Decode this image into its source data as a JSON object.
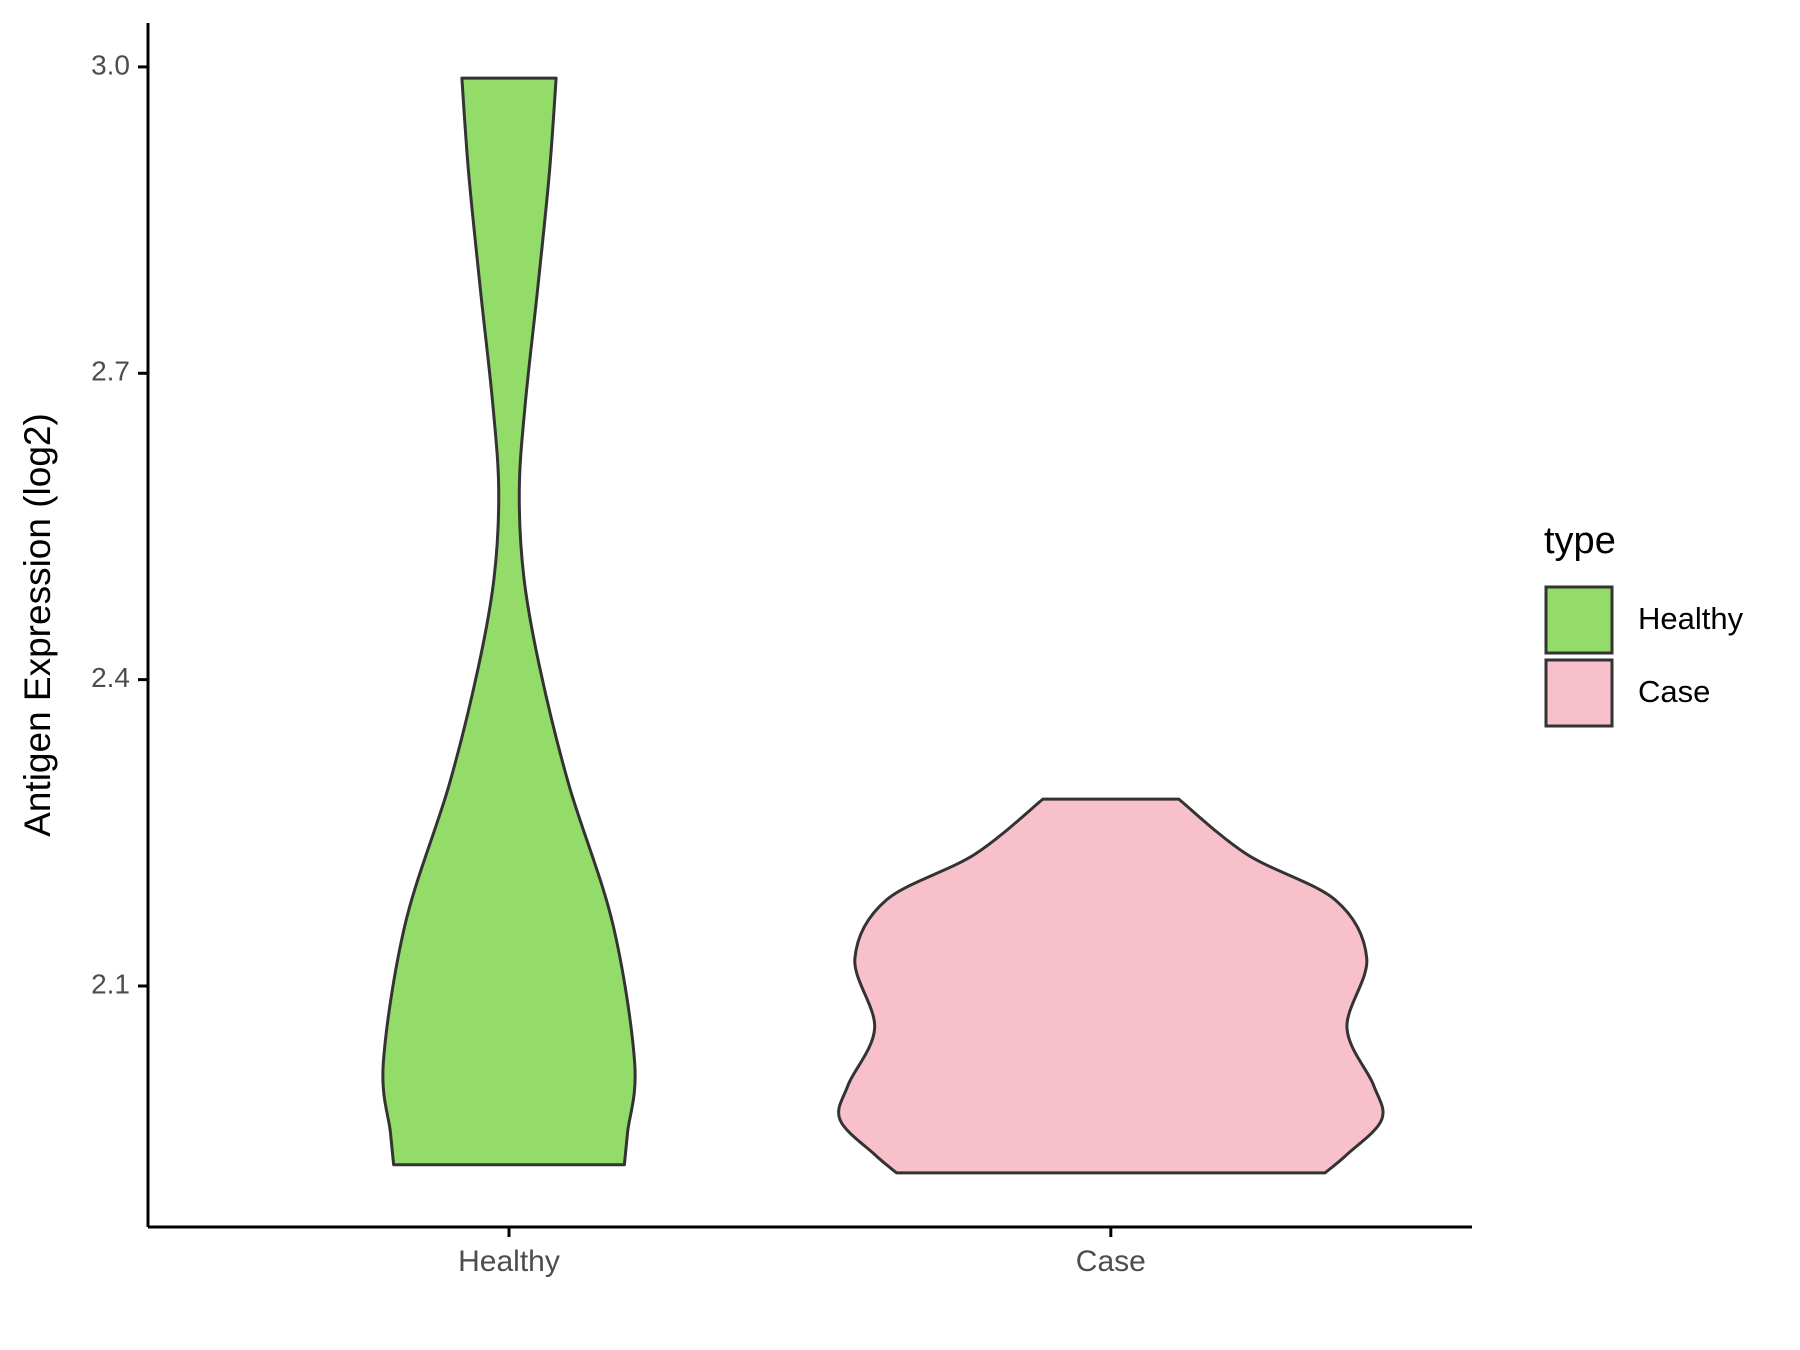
{
  "chart_data": {
    "type": "violin",
    "y_label": "Antigen Expression (log2)",
    "categories": [
      "Healthy",
      "Case"
    ],
    "legend_title": "type",
    "legend": "right",
    "series": [
      {
        "name": "Healthy",
        "color": "#94dc6a",
        "y": [
          2.989,
          2.896,
          2.783,
          2.67,
          2.585,
          2.5,
          2.41,
          2.297,
          2.161,
          2.025,
          1.957,
          1.925
        ],
        "density": [
          0.174,
          0.149,
          0.106,
          0.06,
          0.038,
          0.055,
          0.115,
          0.221,
          0.383,
          0.464,
          0.438,
          0.426
        ]
      },
      {
        "name": "Case",
        "color": "#f7c0cb",
        "y": [
          2.283,
          2.229,
          2.184,
          2.127,
          2.059,
          2.003,
          1.969,
          1.935,
          1.917
        ],
        "density": [
          0.251,
          0.502,
          0.83,
          0.945,
          0.872,
          0.97,
          1.0,
          0.872,
          0.791
        ]
      }
    ],
    "ylim": [
      1.864,
      3.043
    ],
    "yticks": [
      2.1,
      2.4,
      2.7,
      {
        "value": 3.0,
        "label": "3.0"
      }
    ]
  }
}
